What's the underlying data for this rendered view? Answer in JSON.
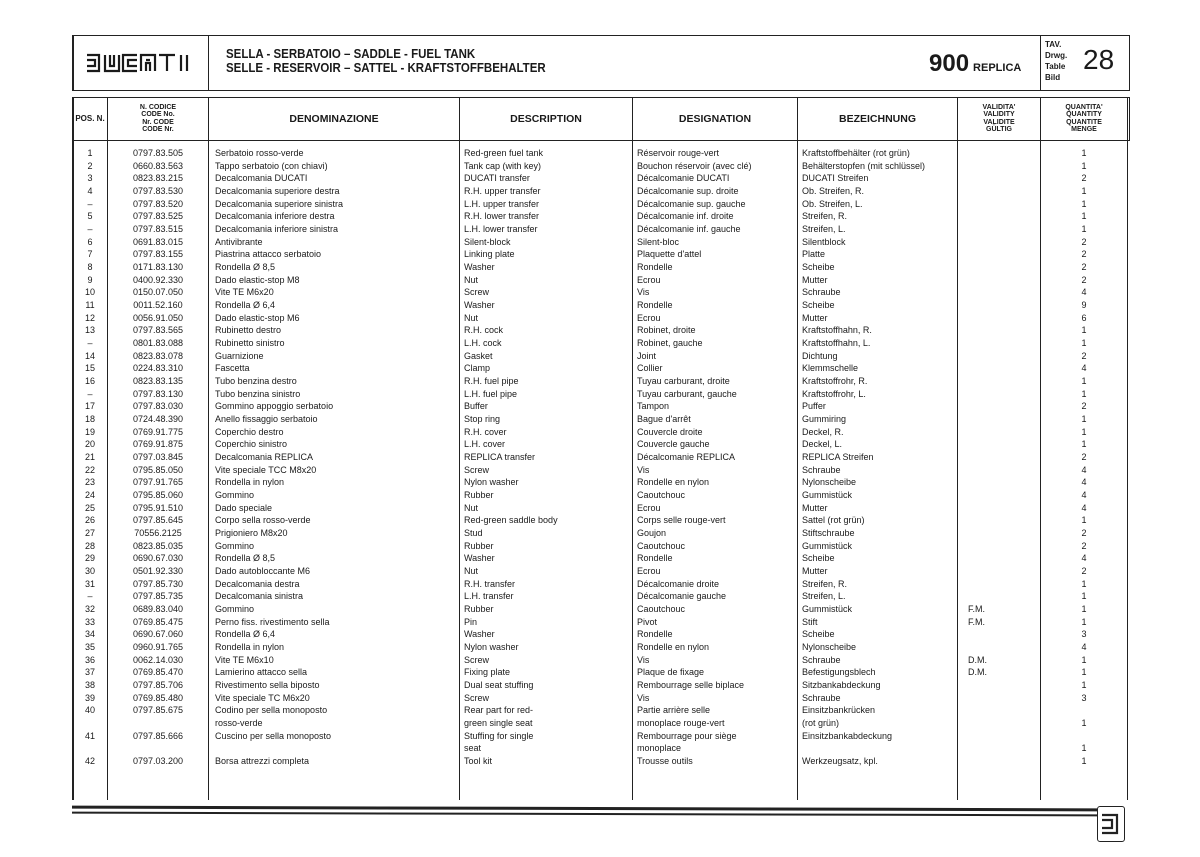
{
  "header": {
    "brand": "DUCATI",
    "title_line1": "SELLA - SERBATOIO – SADDLE - FUEL TANK",
    "title_line2": "SELLE - RESERVOIR – SATTEL - KRAFTSTOFFBEHALTER",
    "model_number": "900",
    "model_name": "REPLICA",
    "table_labels": [
      "TAV.",
      "Drwg.",
      "Table",
      "Bild"
    ],
    "table_number": "28"
  },
  "columns": {
    "pos": "POS. N.",
    "code": "N. CODICE\nCODE No.\nNr. CODE\nCODE Nr.",
    "denominazione": "DENOMINAZIONE",
    "description": "DESCRIPTION",
    "designation": "DESIGNATION",
    "bezeichnung": "BEZEICHNUNG",
    "validity": "VALIDITA'\nVALIDITY\nVALIDITE\nGÜLTIG",
    "quantity": "QUANTITA'\nQUANTITY\nQUANTITE\nMENGE"
  },
  "rows": [
    {
      "pos": "1",
      "code": "0797.83.505",
      "it": "Serbatoio rosso-verde",
      "en": "Red-green fuel tank",
      "fr": "Réservoir rouge-vert",
      "de": "Kraftstoffbehälter (rot grün)",
      "val": "",
      "qty": "1"
    },
    {
      "pos": "2",
      "code": "0660.83.563",
      "it": "Tappo serbatoio (con chiavi)",
      "en": "Tank cap (with key)",
      "fr": "Bouchon réservoir (avec clé)",
      "de": "Behälterstopfen (mit schlüssel)",
      "val": "",
      "qty": "1"
    },
    {
      "pos": "3",
      "code": "0823.83.215",
      "it": "Decalcomania DUCATI",
      "en": "DUCATI transfer",
      "fr": "Décalcomanie DUCATI",
      "de": "DUCATI Streifen",
      "val": "",
      "qty": "2"
    },
    {
      "pos": "4",
      "code": "0797.83.530",
      "it": "Decalcomania superiore destra",
      "en": "R.H. upper transfer",
      "fr": "Décalcomanie sup. droite",
      "de": "Ob. Streifen, R.",
      "val": "",
      "qty": "1"
    },
    {
      "pos": "–",
      "code": "0797.83.520",
      "it": "Decalcomania superiore sinistra",
      "en": "L.H. upper transfer",
      "fr": "Décalcomanie sup. gauche",
      "de": "Ob. Streifen, L.",
      "val": "",
      "qty": "1"
    },
    {
      "pos": "5",
      "code": "0797.83.525",
      "it": "Decalcomania inferiore destra",
      "en": "R.H. lower transfer",
      "fr": "Décalcomanie inf. droite",
      "de": "Streifen, R.",
      "val": "",
      "qty": "1"
    },
    {
      "pos": "–",
      "code": "0797.83.515",
      "it": "Decalcomania inferiore sinistra",
      "en": "L.H. lower transfer",
      "fr": "Décalcomanie inf. gauche",
      "de": "Streifen, L.",
      "val": "",
      "qty": "1"
    },
    {
      "pos": "6",
      "code": "0691.83.015",
      "it": "Antivibrante",
      "en": "Silent-block",
      "fr": "Silent-bloc",
      "de": "Silentblock",
      "val": "",
      "qty": "2"
    },
    {
      "pos": "7",
      "code": "0797.83.155",
      "it": "Piastrina attacco serbatoio",
      "en": "Linking plate",
      "fr": "Plaquette d'attel",
      "de": "Platte",
      "val": "",
      "qty": "2"
    },
    {
      "pos": "8",
      "code": "0171.83.130",
      "it": "Rondella Ø 8,5",
      "en": "Washer",
      "fr": "Rondelle",
      "de": "Scheibe",
      "val": "",
      "qty": "2"
    },
    {
      "pos": "9",
      "code": "0400.92.330",
      "it": "Dado elastic-stop M8",
      "en": "Nut",
      "fr": "Ecrou",
      "de": "Mutter",
      "val": "",
      "qty": "2"
    },
    {
      "pos": "10",
      "code": "0150.07.050",
      "it": "Vite TE M6x20",
      "en": "Screw",
      "fr": "Vis",
      "de": "Schraube",
      "val": "",
      "qty": "4"
    },
    {
      "pos": "11",
      "code": "0011.52.160",
      "it": "Rondella Ø 6,4",
      "en": "Washer",
      "fr": "Rondelle",
      "de": "Scheibe",
      "val": "",
      "qty": "9"
    },
    {
      "pos": "12",
      "code": "0056.91.050",
      "it": "Dado elastic-stop M6",
      "en": "Nut",
      "fr": "Ecrou",
      "de": "Mutter",
      "val": "",
      "qty": "6"
    },
    {
      "pos": "13",
      "code": "0797.83.565",
      "it": "Rubinetto destro",
      "en": "R.H. cock",
      "fr": "Robinet, droite",
      "de": "Kraftstoffhahn, R.",
      "val": "",
      "qty": "1"
    },
    {
      "pos": "–",
      "code": "0801.83.088",
      "it": "Rubinetto sinistro",
      "en": "L.H. cock",
      "fr": "Robinet, gauche",
      "de": "Kraftstoffhahn, L.",
      "val": "",
      "qty": "1"
    },
    {
      "pos": "14",
      "code": "0823.83.078",
      "it": "Guarnizione",
      "en": "Gasket",
      "fr": "Joint",
      "de": "Dichtung",
      "val": "",
      "qty": "2"
    },
    {
      "pos": "15",
      "code": "0224.83.310",
      "it": "Fascetta",
      "en": "Clamp",
      "fr": "Collier",
      "de": "Klemmschelle",
      "val": "",
      "qty": "4"
    },
    {
      "pos": "16",
      "code": "0823.83.135",
      "it": "Tubo benzina destro",
      "en": "R.H. fuel pipe",
      "fr": "Tuyau carburant, droite",
      "de": "Kraftstoffrohr, R.",
      "val": "",
      "qty": "1"
    },
    {
      "pos": "–",
      "code": "0797.83.130",
      "it": "Tubo benzina sinistro",
      "en": "L.H. fuel pipe",
      "fr": "Tuyau carburant, gauche",
      "de": "Kraftstoffrohr, L.",
      "val": "",
      "qty": "1"
    },
    {
      "pos": "17",
      "code": "0797.83.030",
      "it": "Gommino appoggio serbatoio",
      "en": "Buffer",
      "fr": "Tampon",
      "de": "Puffer",
      "val": "",
      "qty": "2"
    },
    {
      "pos": "18",
      "code": "0724.48.390",
      "it": "Anello fissaggio serbatoio",
      "en": "Stop ring",
      "fr": "Bague d'arrêt",
      "de": "Gummiring",
      "val": "",
      "qty": "1"
    },
    {
      "pos": "19",
      "code": "0769.91.775",
      "it": "Coperchio destro",
      "en": "R.H. cover",
      "fr": "Couvercle droite",
      "de": "Deckel, R.",
      "val": "",
      "qty": "1"
    },
    {
      "pos": "20",
      "code": "0769.91.875",
      "it": "Coperchio sinistro",
      "en": "L.H. cover",
      "fr": "Couvercle gauche",
      "de": "Deckel, L.",
      "val": "",
      "qty": "1"
    },
    {
      "pos": "21",
      "code": "0797.03.845",
      "it": "Decalcomania REPLICA",
      "en": "REPLICA transfer",
      "fr": "Décalcomanie REPLICA",
      "de": "REPLICA Streifen",
      "val": "",
      "qty": "2"
    },
    {
      "pos": "22",
      "code": "0795.85.050",
      "it": "Vite speciale TCC M8x20",
      "en": "Screw",
      "fr": "Vis",
      "de": "Schraube",
      "val": "",
      "qty": "4"
    },
    {
      "pos": "23",
      "code": "0797.91.765",
      "it": "Rondella in nylon",
      "en": "Nylon washer",
      "fr": "Rondelle en nylon",
      "de": "Nylonscheibe",
      "val": "",
      "qty": "4"
    },
    {
      "pos": "24",
      "code": "0795.85.060",
      "it": "Gommino",
      "en": "Rubber",
      "fr": "Caoutchouc",
      "de": "Gummistück",
      "val": "",
      "qty": "4"
    },
    {
      "pos": "25",
      "code": "0795.91.510",
      "it": "Dado speciale",
      "en": "Nut",
      "fr": "Ecrou",
      "de": "Mutter",
      "val": "",
      "qty": "4"
    },
    {
      "pos": "26",
      "code": "0797.85.645",
      "it": "Corpo sella rosso-verde",
      "en": "Red-green saddle body",
      "fr": "Corps selle rouge-vert",
      "de": "Sattel (rot grün)",
      "val": "",
      "qty": "1"
    },
    {
      "pos": "27",
      "code": "70556.2125",
      "it": "Prigioniero M8x20",
      "en": "Stud",
      "fr": "Goujon",
      "de": "Stiftschraube",
      "val": "",
      "qty": "2"
    },
    {
      "pos": "28",
      "code": "0823.85.035",
      "it": "Gommino",
      "en": "Rubber",
      "fr": "Caoutchouc",
      "de": "Gummistück",
      "val": "",
      "qty": "2"
    },
    {
      "pos": "29",
      "code": "0690.67.030",
      "it": "Rondella Ø 8,5",
      "en": "Washer",
      "fr": "Rondelle",
      "de": "Scheibe",
      "val": "",
      "qty": "4"
    },
    {
      "pos": "30",
      "code": "0501.92.330",
      "it": "Dado autobloccante M6",
      "en": "Nut",
      "fr": "Ecrou",
      "de": "Mutter",
      "val": "",
      "qty": "2"
    },
    {
      "pos": "31",
      "code": "0797.85.730",
      "it": "Decalcomania destra",
      "en": "R.H. transfer",
      "fr": "Décalcomanie droite",
      "de": "Streifen, R.",
      "val": "",
      "qty": "1"
    },
    {
      "pos": "–",
      "code": "0797.85.735",
      "it": "Decalcomania sinistra",
      "en": "L.H. transfer",
      "fr": "Décalcomanie gauche",
      "de": "Streifen, L.",
      "val": "",
      "qty": "1"
    },
    {
      "pos": "32",
      "code": "0689.83.040",
      "it": "Gommino",
      "en": "Rubber",
      "fr": "Caoutchouc",
      "de": "Gummistück",
      "val": "F.M.",
      "qty": "1"
    },
    {
      "pos": "33",
      "code": "0769.85.475",
      "it": "Perno fiss. rivestimento sella",
      "en": "Pin",
      "fr": "Pivot",
      "de": "Stift",
      "val": "F.M.",
      "qty": "1"
    },
    {
      "pos": "34",
      "code": "0690.67.060",
      "it": "Rondella Ø 6,4",
      "en": "Washer",
      "fr": "Rondelle",
      "de": "Scheibe",
      "val": "",
      "qty": "3"
    },
    {
      "pos": "35",
      "code": "0960.91.765",
      "it": "Rondella in nylon",
      "en": "Nylon washer",
      "fr": "Rondelle en nylon",
      "de": "Nylonscheibe",
      "val": "",
      "qty": "4"
    },
    {
      "pos": "36",
      "code": "0062.14.030",
      "it": "Vite TE M6x10",
      "en": "Screw",
      "fr": "Vis",
      "de": "Schraube",
      "val": "D.M.",
      "qty": "1"
    },
    {
      "pos": "37",
      "code": "0769.85.470",
      "it": "Lamierino attacco sella",
      "en": "Fixing plate",
      "fr": "Plaque de fixage",
      "de": "Befestigungsblech",
      "val": "D.M.",
      "qty": "1"
    },
    {
      "pos": "38",
      "code": "0797.85.706",
      "it": "Rivestimento sella biposto",
      "en": "Dual seat stuffing",
      "fr": "Rembourrage selle biplace",
      "de": "Sitzbankabdeckung",
      "val": "",
      "qty": "1"
    },
    {
      "pos": "39",
      "code": "0769.85.480",
      "it": "Vite speciale TC M6x20",
      "en": "Screw",
      "fr": "Vis",
      "de": "Schraube",
      "val": "",
      "qty": "3"
    },
    {
      "pos": "40",
      "code": "0797.85.675",
      "it": "Codino per sella monoposto\nrosso-verde",
      "en": "Rear part for red-\ngreen single seat",
      "fr": "Partie arrière selle\nmonoplace rouge-vert",
      "de": "Einsitzbankrücken\n(rot grün)",
      "val": "",
      "qty": "\n1"
    },
    {
      "pos": "41",
      "code": "0797.85.666",
      "it": "Cuscino per sella monoposto",
      "en": "Stuffing for single\nseat",
      "fr": "Rembourrage pour siège\nmonoplace",
      "de": "Einsitzbankabdeckung",
      "val": "",
      "qty": "\n1"
    },
    {
      "pos": "42",
      "code": "0797.03.200",
      "it": "Borsa attrezzi completa",
      "en": "Tool kit",
      "fr": "Trousse outils",
      "de": "Werkzeugsatz, kpl.",
      "val": "",
      "qty": "1"
    }
  ]
}
